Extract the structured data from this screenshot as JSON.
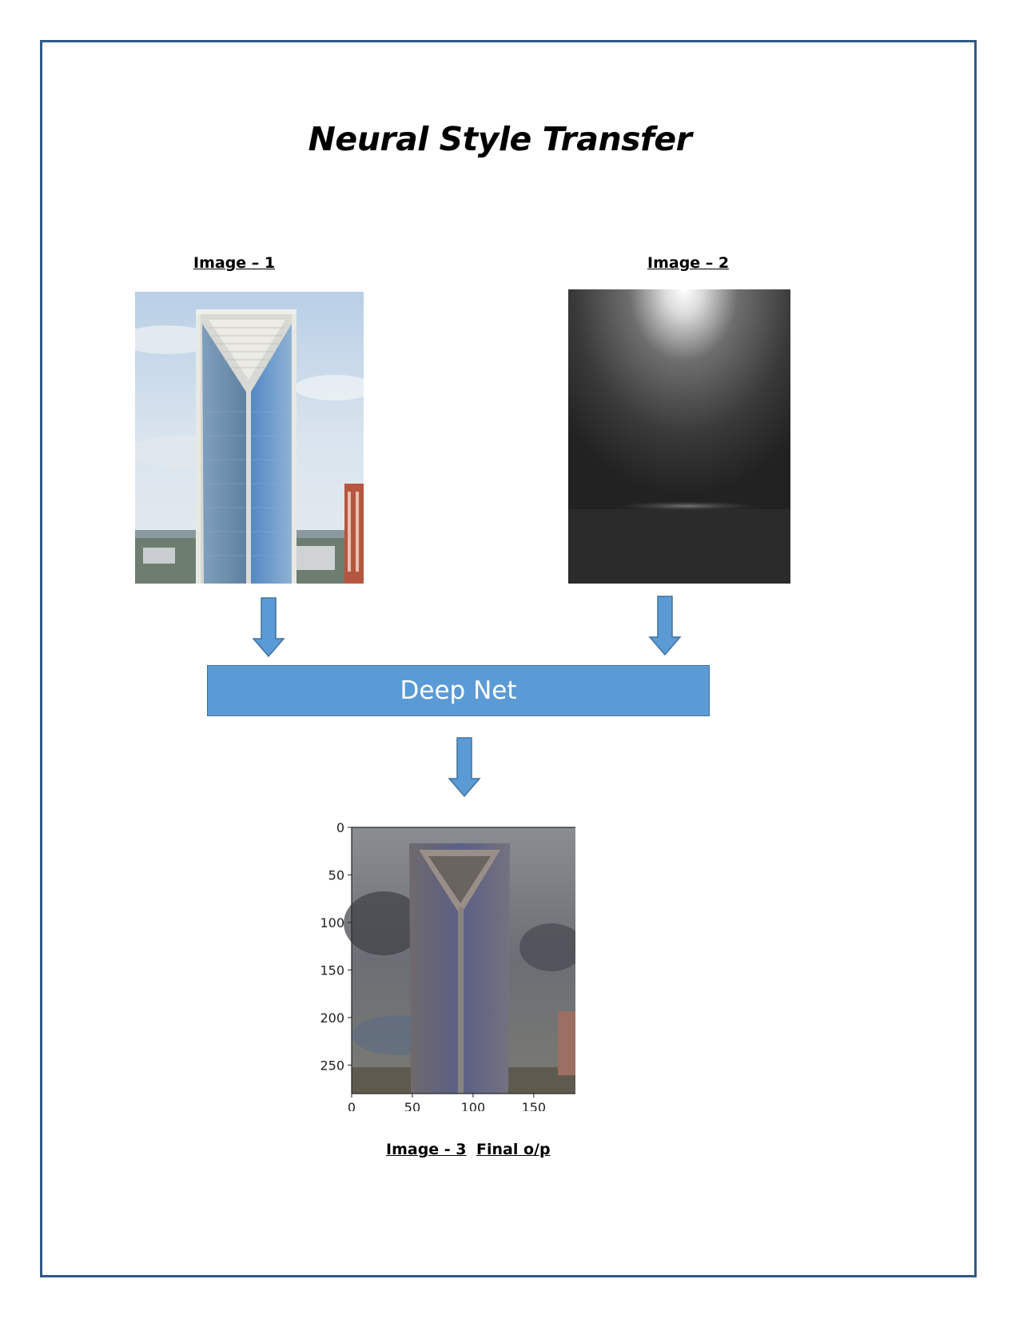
{
  "title": "Neural Style Transfer",
  "labels": {
    "image1": "Image – 1",
    "image2": "Image – 2",
    "image3": "Image - 3",
    "final": "Final o/p"
  },
  "deep_net_label": "Deep Net",
  "colors": {
    "frame": "#2f5a86",
    "accent": "#5b9bd5",
    "accent_border": "#41719c"
  },
  "output_plot": {
    "y_ticks": [
      "0",
      "50",
      "100",
      "150",
      "200",
      "250"
    ],
    "x_ticks": [
      "0",
      "50",
      "100",
      "150"
    ]
  }
}
